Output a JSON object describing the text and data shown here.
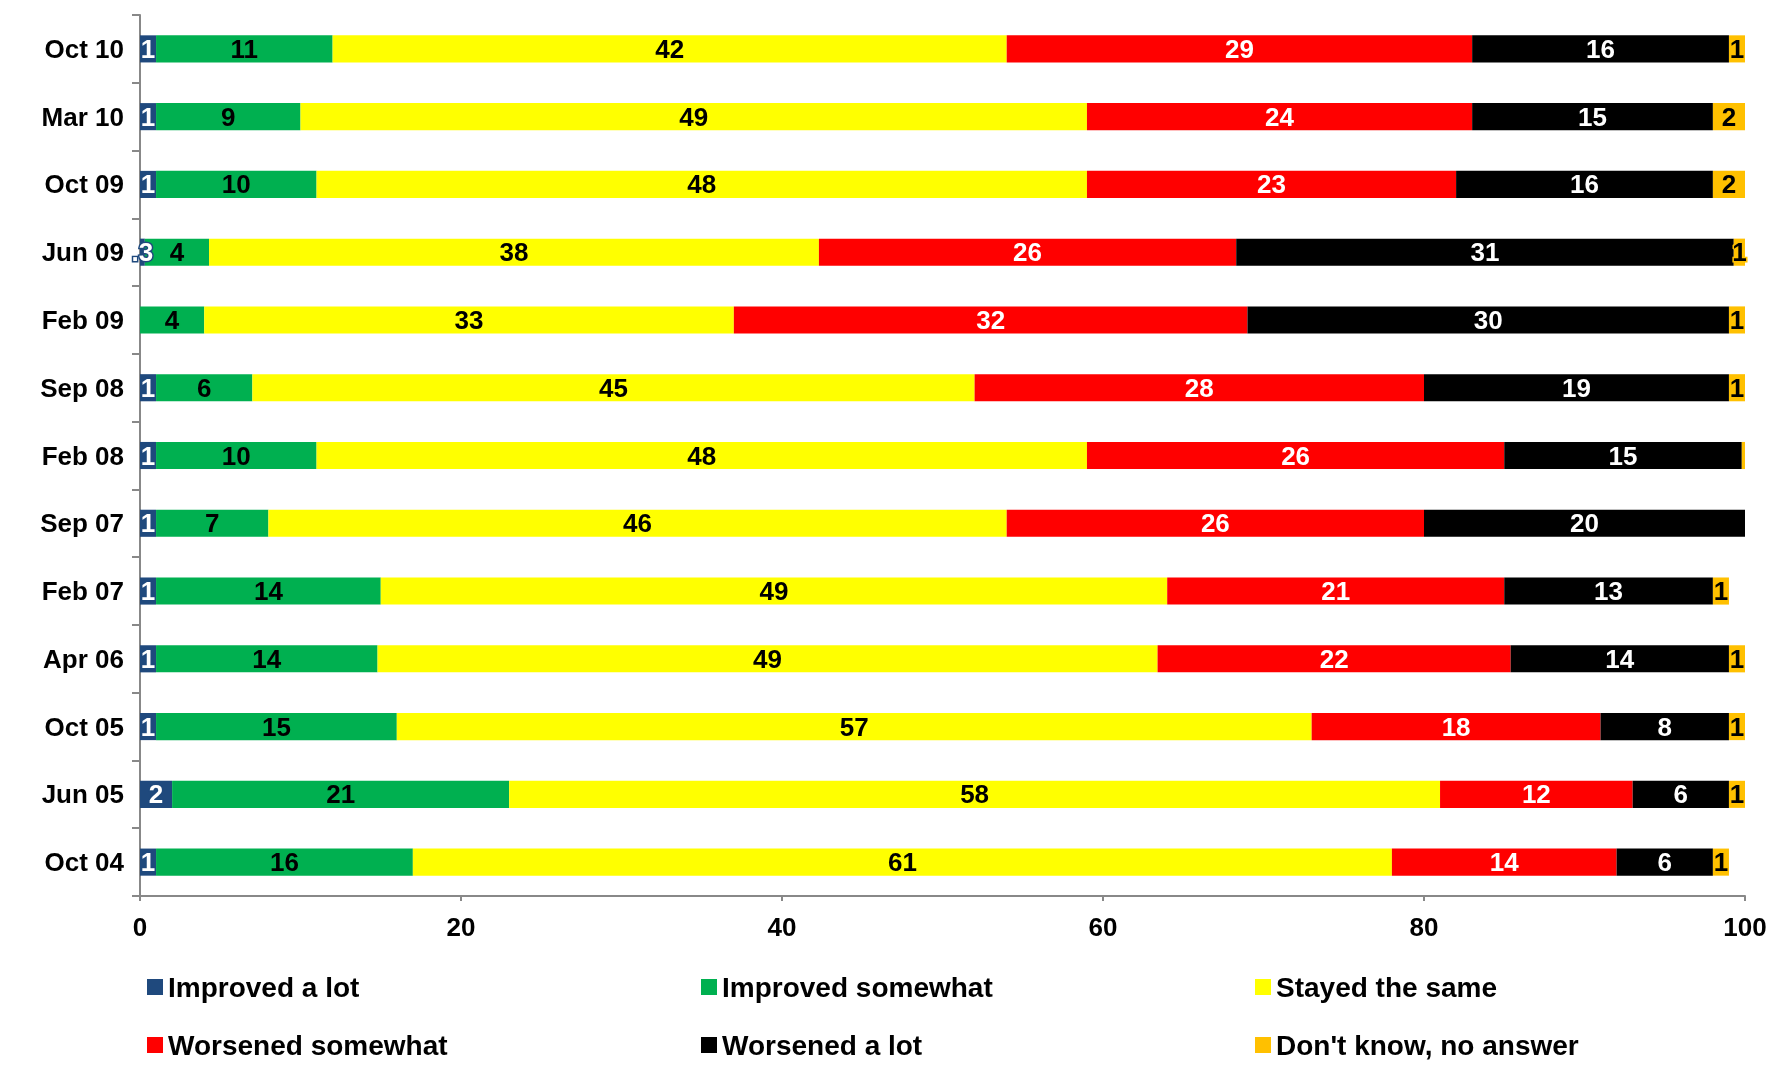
{
  "chart_data": {
    "type": "bar",
    "orientation": "horizontal",
    "stacked": true,
    "categories": [
      "Oct 10",
      "Mar 10",
      "Oct 09",
      "Jun 09",
      "Feb 09",
      "Sep 08",
      "Feb 08",
      "Sep 07",
      "Feb 07",
      "Apr 06",
      "Oct 05",
      "Jun 05",
      "Oct 04"
    ],
    "series": [
      {
        "name": "Improved a lot",
        "color": "#1f497d",
        "values": [
          1,
          1,
          1,
          0.3,
          null,
          1,
          1,
          1,
          1,
          1,
          1,
          2,
          1
        ],
        "value_labels": [
          "1",
          "1",
          "1",
          ".3",
          null,
          "1",
          "1",
          "1",
          "1",
          "1",
          "1",
          "2",
          "1"
        ]
      },
      {
        "name": "Improved somewhat",
        "color": "#00b050",
        "values": [
          11,
          9,
          10,
          4,
          4,
          6,
          10,
          7,
          14,
          13.8,
          15,
          21,
          16
        ],
        "value_labels": [
          "11",
          "9",
          "10",
          "4",
          "4",
          "6",
          "10",
          "7",
          "14",
          "14",
          "15",
          "21",
          "16"
        ]
      },
      {
        "name": "Stayed the same",
        "color": "#ffff00",
        "values": [
          42,
          49,
          48,
          38,
          33,
          45,
          48,
          46,
          49,
          48.6,
          57,
          58,
          61
        ],
        "value_labels": [
          "42",
          "49",
          "48",
          "38",
          "33",
          "45",
          "48",
          "46",
          "49",
          "49",
          "57",
          "58",
          "61"
        ]
      },
      {
        "name": "Worsened somewhat",
        "color": "#ff0000",
        "values": [
          29,
          24,
          23,
          26,
          32,
          28,
          26,
          26,
          21,
          22,
          18,
          12,
          14
        ],
        "value_labels": [
          "29",
          "24",
          "23",
          "26",
          "32",
          "28",
          "26",
          "26",
          "21",
          "22",
          "18",
          "12",
          "14"
        ]
      },
      {
        "name": "Worsened a lot",
        "color": "#000000",
        "values": [
          16,
          15,
          16,
          31,
          30,
          19,
          14.8,
          20,
          13,
          13.6,
          8,
          6,
          6
        ],
        "value_labels": [
          "16",
          "15",
          "16",
          "31",
          "30",
          "19",
          "15",
          "20",
          "13",
          "14",
          "8",
          "6",
          "6"
        ]
      },
      {
        "name": "Don't know, no answer",
        "color": "#ffc000",
        "values": [
          1,
          2,
          2,
          0.7,
          1,
          1,
          0.2,
          null,
          1,
          1,
          1,
          1,
          1
        ],
        "value_labels": [
          "1",
          "2",
          "2",
          "1",
          "1",
          "1",
          null,
          null,
          "1",
          "1",
          "1",
          "1",
          "1"
        ]
      }
    ],
    "xlim": [
      0,
      100
    ],
    "xticks": [
      0,
      20,
      40,
      60,
      80,
      100
    ],
    "grid": false,
    "legend": "bottom"
  }
}
